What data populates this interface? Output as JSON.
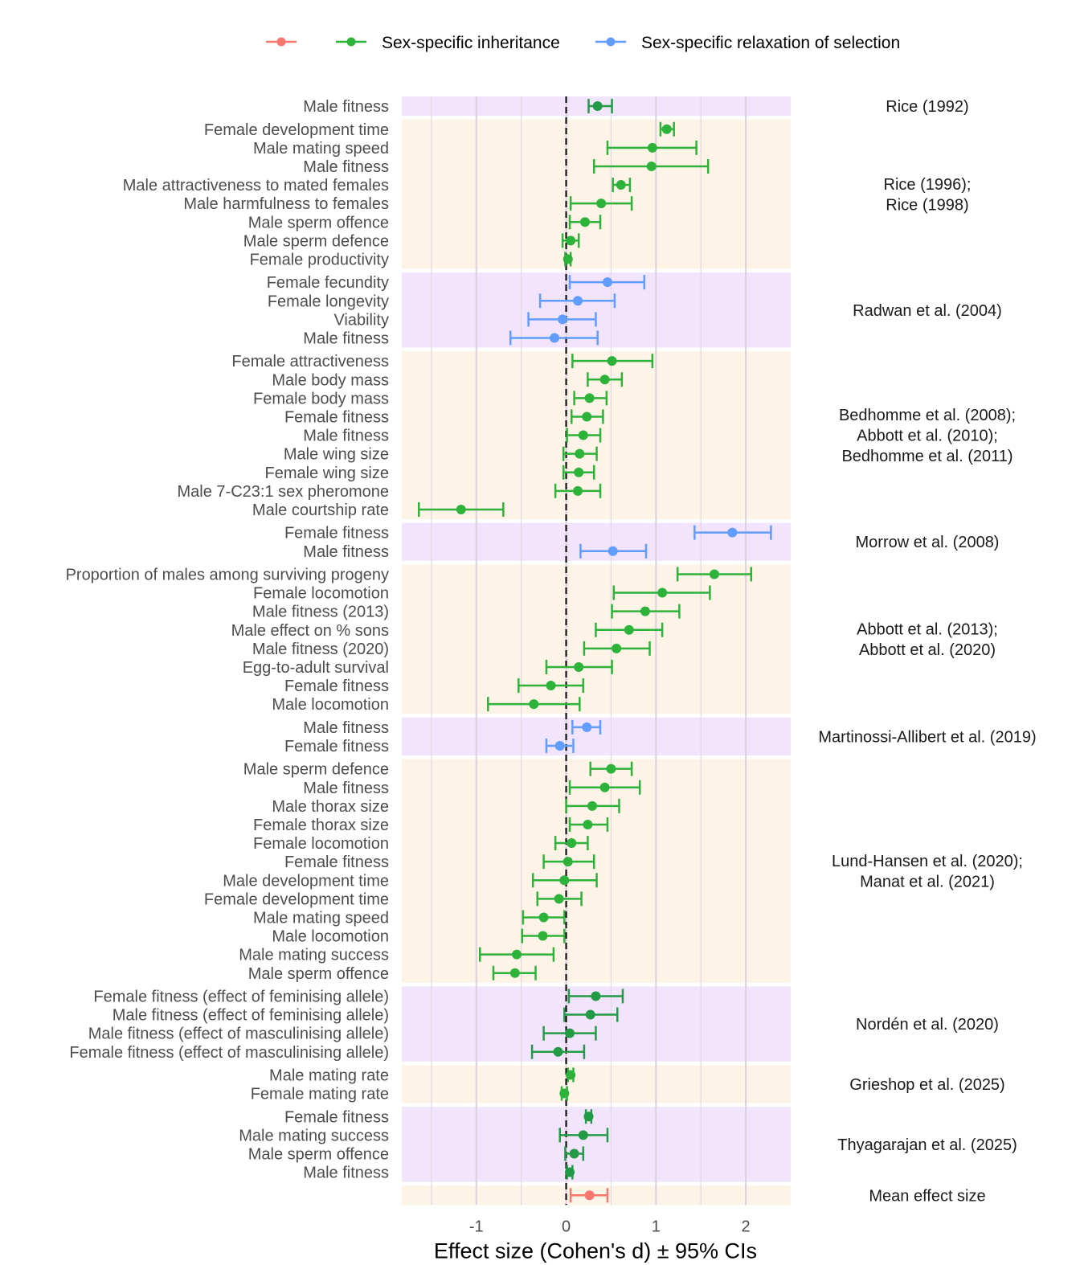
{
  "chart_data": {
    "type": "forest",
    "xlabel": "Effect size (Cohen's d) ± 95% CIs",
    "xlim": [
      -1.83,
      2.5
    ],
    "xticks": [
      -1,
      0,
      1,
      2
    ],
    "xtick_labels": [
      "-1",
      "0",
      "1",
      "2"
    ],
    "minor_grid": [
      -1.5,
      -0.5,
      0.5,
      1.5
    ],
    "reference_line": 0,
    "legend": {
      "position": "top",
      "entries": [
        {
          "key": "mean",
          "label": "",
          "color": "#F8766D"
        },
        {
          "key": "inheritance",
          "label": "Sex-specific inheritance",
          "color": "#2DB33A"
        },
        {
          "key": "relaxation",
          "label": "Sex-specific relaxation of selection",
          "color": "#619CFF"
        }
      ]
    },
    "band_colors": [
      "#F1E4FC",
      "#FDF3E6"
    ],
    "studies": [
      {
        "study": [
          "Rice (1992)"
        ],
        "color_key": "inheritance",
        "dark": true,
        "rows": [
          {
            "label": "Male fitness",
            "d": 0.35,
            "lo": 0.25,
            "hi": 0.51
          }
        ]
      },
      {
        "study": [
          "Rice (1996);",
          "Rice (1998)"
        ],
        "color_key": "inheritance",
        "rows": [
          {
            "label": "Female development time",
            "d": 1.12,
            "lo": 1.05,
            "hi": 1.2
          },
          {
            "label": "Male mating speed",
            "d": 0.96,
            "lo": 0.46,
            "hi": 1.45
          },
          {
            "label": "Male fitness",
            "d": 0.95,
            "lo": 0.31,
            "hi": 1.58
          },
          {
            "label": "Male attractiveness to mated females",
            "d": 0.61,
            "lo": 0.52,
            "hi": 0.71
          },
          {
            "label": "Male harmfulness to females",
            "d": 0.39,
            "lo": 0.05,
            "hi": 0.73
          },
          {
            "label": "Male sperm offence",
            "d": 0.21,
            "lo": 0.04,
            "hi": 0.38
          },
          {
            "label": "Male sperm defence",
            "d": 0.05,
            "lo": -0.04,
            "hi": 0.14
          },
          {
            "label": "Female productivity",
            "d": 0.02,
            "lo": -0.01,
            "hi": 0.05
          }
        ]
      },
      {
        "study": [
          "Radwan et al. (2004)"
        ],
        "color_key": "relaxation",
        "rows": [
          {
            "label": "Female fecundity",
            "d": 0.46,
            "lo": 0.04,
            "hi": 0.87
          },
          {
            "label": "Female longevity",
            "d": 0.13,
            "lo": -0.29,
            "hi": 0.54
          },
          {
            "label": "Viability",
            "d": -0.04,
            "lo": -0.42,
            "hi": 0.33
          },
          {
            "label": "Male fitness",
            "d": -0.13,
            "lo": -0.62,
            "hi": 0.35
          }
        ]
      },
      {
        "study": [
          "Bedhomme et al. (2008);",
          "Abbott et al. (2010);",
          "Bedhomme et al. (2011)"
        ],
        "color_key": "inheritance",
        "rows": [
          {
            "label": "Female attractiveness",
            "d": 0.51,
            "lo": 0.07,
            "hi": 0.96
          },
          {
            "label": "Male body mass",
            "d": 0.43,
            "lo": 0.24,
            "hi": 0.62
          },
          {
            "label": "Female body mass",
            "d": 0.26,
            "lo": 0.09,
            "hi": 0.45
          },
          {
            "label": "Female fitness",
            "d": 0.23,
            "lo": 0.06,
            "hi": 0.41
          },
          {
            "label": "Male fitness",
            "d": 0.19,
            "lo": 0.01,
            "hi": 0.38
          },
          {
            "label": "Male wing size",
            "d": 0.15,
            "lo": -0.03,
            "hi": 0.34
          },
          {
            "label": "Female wing size",
            "d": 0.14,
            "lo": -0.03,
            "hi": 0.31
          },
          {
            "label": "Male 7-C23:1 sex pheromone",
            "d": 0.13,
            "lo": -0.12,
            "hi": 0.38
          },
          {
            "label": "Male courtship rate",
            "d": -1.17,
            "lo": -1.64,
            "hi": -0.7
          }
        ]
      },
      {
        "study": [
          "Morrow et al. (2008)"
        ],
        "color_key": "relaxation",
        "rows": [
          {
            "label": "Female fitness",
            "d": 1.85,
            "lo": 1.43,
            "hi": 2.28
          },
          {
            "label": "Male fitness",
            "d": 0.52,
            "lo": 0.16,
            "hi": 0.89
          }
        ]
      },
      {
        "study": [
          "Abbott et al. (2013);",
          "Abbott et al. (2020)"
        ],
        "color_key": "inheritance",
        "rows": [
          {
            "label": "Proportion of males among surviving progeny",
            "d": 1.65,
            "lo": 1.24,
            "hi": 2.06
          },
          {
            "label": "Female locomotion",
            "d": 1.07,
            "lo": 0.53,
            "hi": 1.6
          },
          {
            "label": "Male fitness (2013)",
            "d": 0.88,
            "lo": 0.51,
            "hi": 1.26
          },
          {
            "label": "Male effect on % sons",
            "d": 0.7,
            "lo": 0.33,
            "hi": 1.07
          },
          {
            "label": "Male fitness (2020)",
            "d": 0.56,
            "lo": 0.2,
            "hi": 0.93
          },
          {
            "label": "Egg-to-adult survival",
            "d": 0.14,
            "lo": -0.22,
            "hi": 0.51
          },
          {
            "label": "Female fitness",
            "d": -0.17,
            "lo": -0.53,
            "hi": 0.19
          },
          {
            "label": "Male locomotion",
            "d": -0.36,
            "lo": -0.87,
            "hi": 0.15
          }
        ]
      },
      {
        "study": [
          "Martinossi-Allibert et al. (2019)"
        ],
        "color_key": "relaxation",
        "rows": [
          {
            "label": "Male fitness",
            "d": 0.23,
            "lo": 0.07,
            "hi": 0.38
          },
          {
            "label": "Female fitness",
            "d": -0.07,
            "lo": -0.22,
            "hi": 0.08
          }
        ]
      },
      {
        "study": [
          "Lund-Hansen et al. (2020);",
          "Manat et al. (2021)"
        ],
        "color_key": "inheritance",
        "rows": [
          {
            "label": "Male sperm defence",
            "d": 0.5,
            "lo": 0.27,
            "hi": 0.73
          },
          {
            "label": "Male fitness",
            "d": 0.43,
            "lo": 0.04,
            "hi": 0.82
          },
          {
            "label": "Male thorax size",
            "d": 0.29,
            "lo": 0.0,
            "hi": 0.59
          },
          {
            "label": "Female thorax size",
            "d": 0.24,
            "lo": 0.04,
            "hi": 0.46
          },
          {
            "label": "Female locomotion",
            "d": 0.06,
            "lo": -0.12,
            "hi": 0.24
          },
          {
            "label": "Female fitness",
            "d": 0.02,
            "lo": -0.25,
            "hi": 0.31
          },
          {
            "label": "Male development time",
            "d": -0.02,
            "lo": -0.37,
            "hi": 0.34
          },
          {
            "label": "Female development time",
            "d": -0.08,
            "lo": -0.32,
            "hi": 0.17
          },
          {
            "label": "Male mating speed",
            "d": -0.25,
            "lo": -0.48,
            "hi": -0.02
          },
          {
            "label": "Male locomotion",
            "d": -0.26,
            "lo": -0.49,
            "hi": -0.02
          },
          {
            "label": "Male mating success",
            "d": -0.55,
            "lo": -0.96,
            "hi": -0.14
          },
          {
            "label": "Male sperm offence",
            "d": -0.57,
            "lo": -0.81,
            "hi": -0.34
          }
        ]
      },
      {
        "study": [
          "Nordén et al. (2020)"
        ],
        "color_key": "inheritance",
        "dark": true,
        "rows": [
          {
            "label": "Female fitness (effect of feminising allele)",
            "d": 0.33,
            "lo": 0.03,
            "hi": 0.63
          },
          {
            "label": "Male fitness (effect of feminising allele)",
            "d": 0.27,
            "lo": -0.02,
            "hi": 0.57
          },
          {
            "label": "Male fitness (effect of masculinising allele)",
            "d": 0.04,
            "lo": -0.25,
            "hi": 0.33
          },
          {
            "label": "Female fitness (effect of masculinising allele)",
            "d": -0.09,
            "lo": -0.38,
            "hi": 0.2
          }
        ]
      },
      {
        "study": [
          "Grieshop et al. (2025)"
        ],
        "color_key": "inheritance",
        "rows": [
          {
            "label": "Male mating rate",
            "d": 0.05,
            "lo": 0.02,
            "hi": 0.08
          },
          {
            "label": "Female mating rate",
            "d": -0.02,
            "lo": -0.05,
            "hi": 0.01
          }
        ]
      },
      {
        "study": [
          "Thyagarajan et al. (2025)"
        ],
        "color_key": "inheritance",
        "dark": true,
        "rows": [
          {
            "label": "Female fitness",
            "d": 0.25,
            "lo": 0.22,
            "hi": 0.28
          },
          {
            "label": "Male mating success",
            "d": 0.19,
            "lo": -0.07,
            "hi": 0.46
          },
          {
            "label": "Male sperm offence",
            "d": 0.09,
            "lo": -0.01,
            "hi": 0.19
          },
          {
            "label": "Male fitness",
            "d": 0.04,
            "lo": 0.01,
            "hi": 0.07
          }
        ]
      },
      {
        "study": [
          "Mean effect size"
        ],
        "color_key": "mean",
        "rows": [
          {
            "label": "",
            "d": 0.26,
            "lo": 0.05,
            "hi": 0.46
          }
        ]
      }
    ]
  }
}
